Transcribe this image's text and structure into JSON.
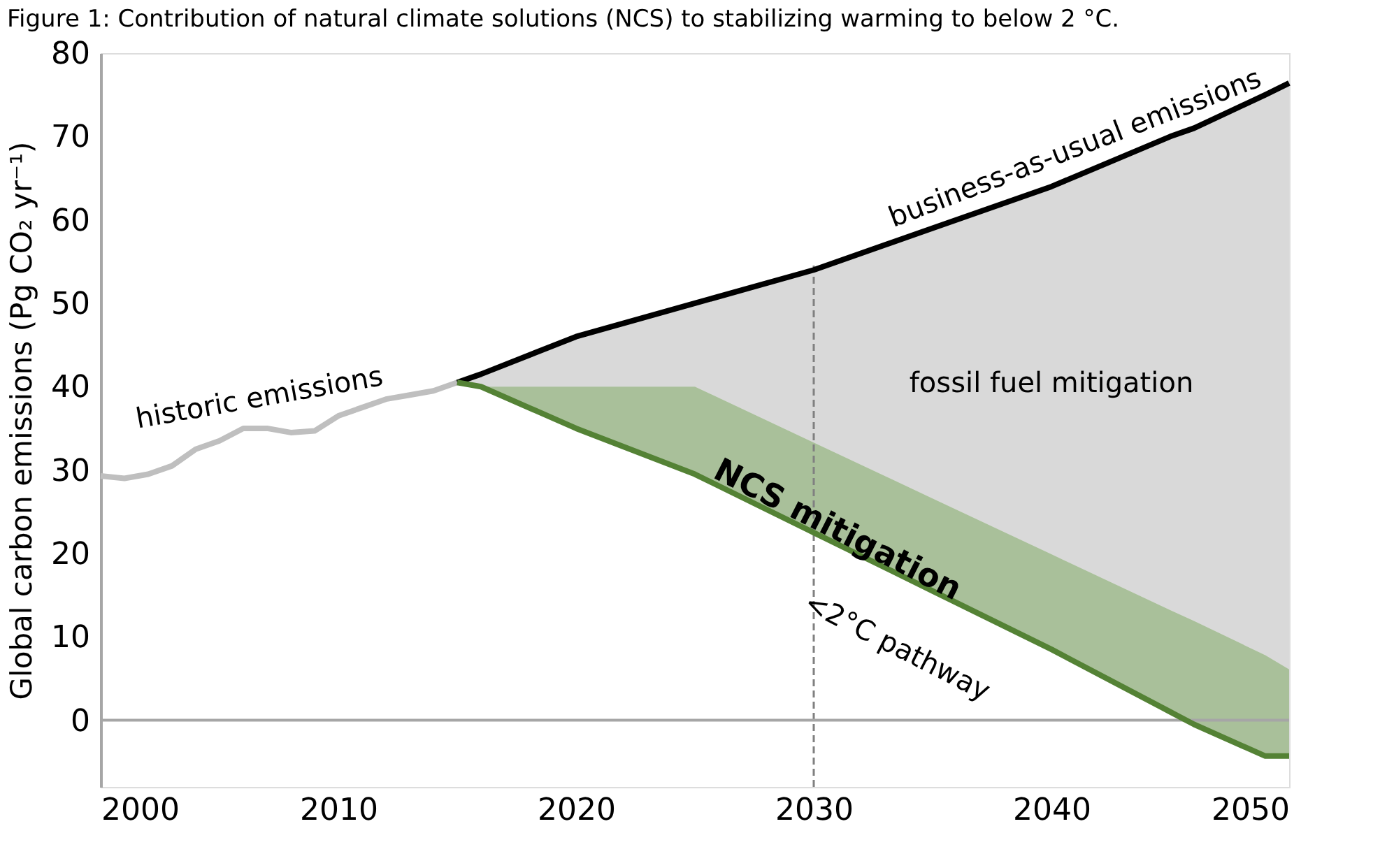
{
  "chart_data": {
    "type": "line",
    "title": "Figure 1: Contribution of natural climate solutions (NCS) to stabilizing warming to below 2 °C.",
    "ylabel": "Global carbon emissions (Pg CO₂ yr⁻¹)",
    "xlim": [
      2000,
      2050
    ],
    "xticks": [
      2000,
      2010,
      2020,
      2030,
      2040,
      2050
    ],
    "ylim": [
      -8,
      80
    ],
    "yticks": [
      0,
      10,
      20,
      30,
      40,
      50,
      60,
      70,
      80
    ],
    "grid": false,
    "marker": "none",
    "line_style": "solid",
    "series": [
      {
        "color": "#bfbfbf",
        "x": [
          2000,
          2001,
          2002,
          2003,
          2004,
          2005,
          2006,
          2007,
          2008,
          2009,
          2010,
          2011,
          2012,
          2013,
          2014,
          2015
        ],
        "values": [
          29.3,
          29,
          29.5,
          30.5,
          32.5,
          33.5,
          35,
          35,
          34.5,
          34.7,
          36.5,
          37.5,
          38.5,
          39,
          39.5,
          40.5
        ]
      },
      {
        "color": "#000000",
        "x": [
          2015,
          2016,
          2020,
          2025,
          2030,
          2035,
          2040,
          2045,
          2046,
          2049,
          2050
        ],
        "values": [
          40.5,
          41.5,
          46,
          50,
          54,
          59,
          64,
          70,
          71,
          75,
          76.4
        ],
        "lower": [
          40.5,
          40,
          40,
          40,
          33.3,
          26.6,
          19.9,
          13.2,
          11.9,
          7.8,
          6.1
        ],
        "upper": [
          40.5,
          41.5,
          46,
          50,
          54,
          59,
          64,
          70,
          71,
          75,
          76.4
        ]
      },
      {
        "color": "#548235",
        "x": [
          2015,
          2016,
          2020,
          2025,
          2030,
          2035,
          2040,
          2045,
          2046,
          2049,
          2050
        ],
        "values": [
          40.5,
          40,
          35,
          29.5,
          22.5,
          15.5,
          8.5,
          1,
          -0.5,
          -4.3,
          -4.3
        ],
        "lower": [
          40.5,
          40,
          35,
          29.5,
          22.5,
          15.5,
          8.5,
          1,
          -0.5,
          -4.3,
          -4.3
        ],
        "upper": [
          40.5,
          40,
          40,
          40,
          33.3,
          26.6,
          19.9,
          13.2,
          11.9,
          7.8,
          6.1
        ]
      }
    ],
    "ref_lines": [
      {
        "axis": "y",
        "value": 0,
        "color": "#a6a6a6",
        "line_style": "solid"
      },
      {
        "axis": "x",
        "value": 2030,
        "color": "#808080",
        "line_style": "dashed"
      }
    ],
    "annotations": [
      "historic emissions",
      "business-as-usual emissions",
      "fossil fuel mitigation",
      "NCS mitigation",
      "<2°C pathway"
    ]
  }
}
